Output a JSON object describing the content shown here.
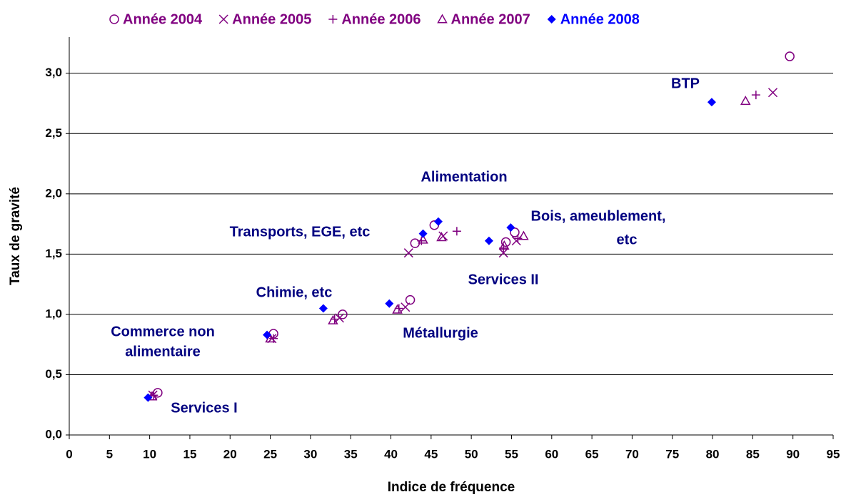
{
  "chart_data": {
    "type": "scatter",
    "x_label": "Indice de fréquence",
    "y_label": "Taux de gravité",
    "xlim": [
      0,
      95
    ],
    "xticks": [
      0,
      5,
      10,
      15,
      20,
      25,
      30,
      35,
      40,
      45,
      50,
      55,
      60,
      65,
      70,
      75,
      80,
      85,
      90,
      95
    ],
    "ylim": [
      0,
      3.3
    ],
    "yticks": [
      {
        "value": 0,
        "label": "0,0"
      },
      {
        "value": 0.5,
        "label": "0,5"
      },
      {
        "value": 1,
        "label": "1,0"
      },
      {
        "value": 1.5,
        "label": "1,5"
      },
      {
        "value": 2,
        "label": "2,0"
      },
      {
        "value": 2.5,
        "label": "2,5"
      },
      {
        "value": 3,
        "label": "3,0"
      }
    ],
    "grid": true,
    "legend": "top",
    "series": [
      {
        "name": "Année 2004",
        "color": "#800080",
        "marker": "circle",
        "x": [
          11.0,
          25.4,
          34.0,
          42.4,
          43.0,
          45.4,
          54.3,
          55.4,
          89.6
        ],
        "values": [
          0.35,
          0.84,
          1.0,
          1.12,
          1.59,
          1.74,
          1.6,
          1.68,
          3.14
        ]
      },
      {
        "name": "Année 2005",
        "color": "#800080",
        "marker": "x",
        "x": [
          10.4,
          25.2,
          33.6,
          41.8,
          42.2,
          46.5,
          54.0,
          55.6,
          87.5
        ],
        "values": [
          0.33,
          0.8,
          0.97,
          1.06,
          1.51,
          1.65,
          1.51,
          1.61,
          2.84
        ]
      },
      {
        "name": "Année 2006",
        "color": "#800080",
        "marker": "plus",
        "x": [
          10.5,
          25.4,
          33.0,
          41.0,
          43.8,
          48.2,
          54.0,
          55.8,
          85.4
        ],
        "values": [
          0.33,
          0.8,
          0.96,
          1.05,
          1.61,
          1.69,
          1.55,
          1.63,
          2.82
        ]
      },
      {
        "name": "Année 2007",
        "color": "#800080",
        "marker": "triangle",
        "x": [
          10.3,
          25.0,
          32.8,
          40.8,
          44.0,
          46.3,
          54.1,
          56.5,
          84.1
        ],
        "values": [
          0.32,
          0.8,
          0.95,
          1.04,
          1.62,
          1.64,
          1.57,
          1.65,
          2.77
        ]
      },
      {
        "name": "Année 2008",
        "color": "#0000ff",
        "marker": "diamond",
        "x": [
          9.8,
          24.6,
          31.6,
          39.8,
          44.0,
          45.9,
          52.2,
          54.9,
          79.9
        ],
        "values": [
          0.31,
          0.83,
          1.05,
          1.09,
          1.67,
          1.77,
          1.61,
          1.72,
          2.76
        ]
      }
    ],
    "annotations": [
      "BTP",
      "Alimentation",
      "Transports, EGE, etc",
      "Bois, ameublement,",
      "etc",
      "Services II",
      "Chimie, etc",
      "Métallurgie",
      "Commerce non",
      "alimentaire",
      "Services I"
    ]
  }
}
